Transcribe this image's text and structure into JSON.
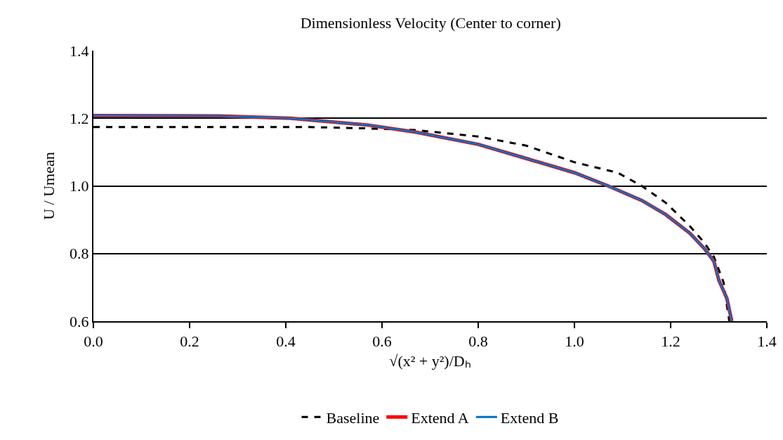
{
  "chart_data": {
    "type": "line",
    "title": "Dimensionless Velocity (Center to corner)",
    "xlabel": "√(x² + y²)/Dₕ",
    "ylabel": "U / Umean",
    "xlim": [
      0,
      1.4
    ],
    "xticks": [
      {
        "value": 0,
        "label": "0.0"
      },
      0.2,
      0.4,
      0.6,
      0.8,
      {
        "value": 1,
        "label": "1.0"
      },
      1.2,
      1.4
    ],
    "ylim": [
      0.6,
      1.4
    ],
    "yticks": [
      0.6,
      0.8,
      {
        "value": 1,
        "label": "1.0"
      },
      1.2,
      1.4
    ],
    "grid": "y",
    "legend": "bottom",
    "marker": "none",
    "series": [
      {
        "name": "Baseline",
        "color": "#000000",
        "line_style": "dashed",
        "x": [
          0,
          0.2,
          0.45,
          0.57,
          0.67,
          0.8,
          0.9,
          1.0,
          1.09,
          1.14,
          1.19,
          1.24,
          1.27,
          1.29,
          1.31,
          1.317,
          1.322
        ],
        "values": [
          1.174,
          1.174,
          1.174,
          1.17,
          1.165,
          1.146,
          1.119,
          1.07,
          1.039,
          1.0,
          0.95,
          0.881,
          0.832,
          0.79,
          0.715,
          0.646,
          0.6
        ]
      },
      {
        "name": "Extend A",
        "color": "#ff0000",
        "line_style": "solid",
        "x": [
          0,
          0.26,
          0.41,
          0.57,
          0.67,
          0.8,
          0.9,
          1.0,
          1.07,
          1.14,
          1.19,
          1.24,
          1.27,
          1.29,
          1.3,
          1.317,
          1.327
        ],
        "values": [
          1.208,
          1.207,
          1.2,
          1.18,
          1.159,
          1.123,
          1.081,
          1.039,
          1.0,
          0.957,
          0.915,
          0.86,
          0.815,
          0.777,
          0.722,
          0.667,
          0.6
        ]
      },
      {
        "name": "Extend B",
        "color": "#0070c0",
        "line_style": "solid",
        "x": [
          0,
          0.26,
          0.41,
          0.57,
          0.67,
          0.8,
          0.9,
          1.0,
          1.07,
          1.14,
          1.19,
          1.24,
          1.27,
          1.29,
          1.3,
          1.317,
          1.327
        ],
        "values": [
          1.208,
          1.207,
          1.2,
          1.18,
          1.159,
          1.123,
          1.081,
          1.039,
          1.0,
          0.957,
          0.915,
          0.86,
          0.815,
          0.777,
          0.722,
          0.667,
          0.6
        ]
      }
    ]
  }
}
